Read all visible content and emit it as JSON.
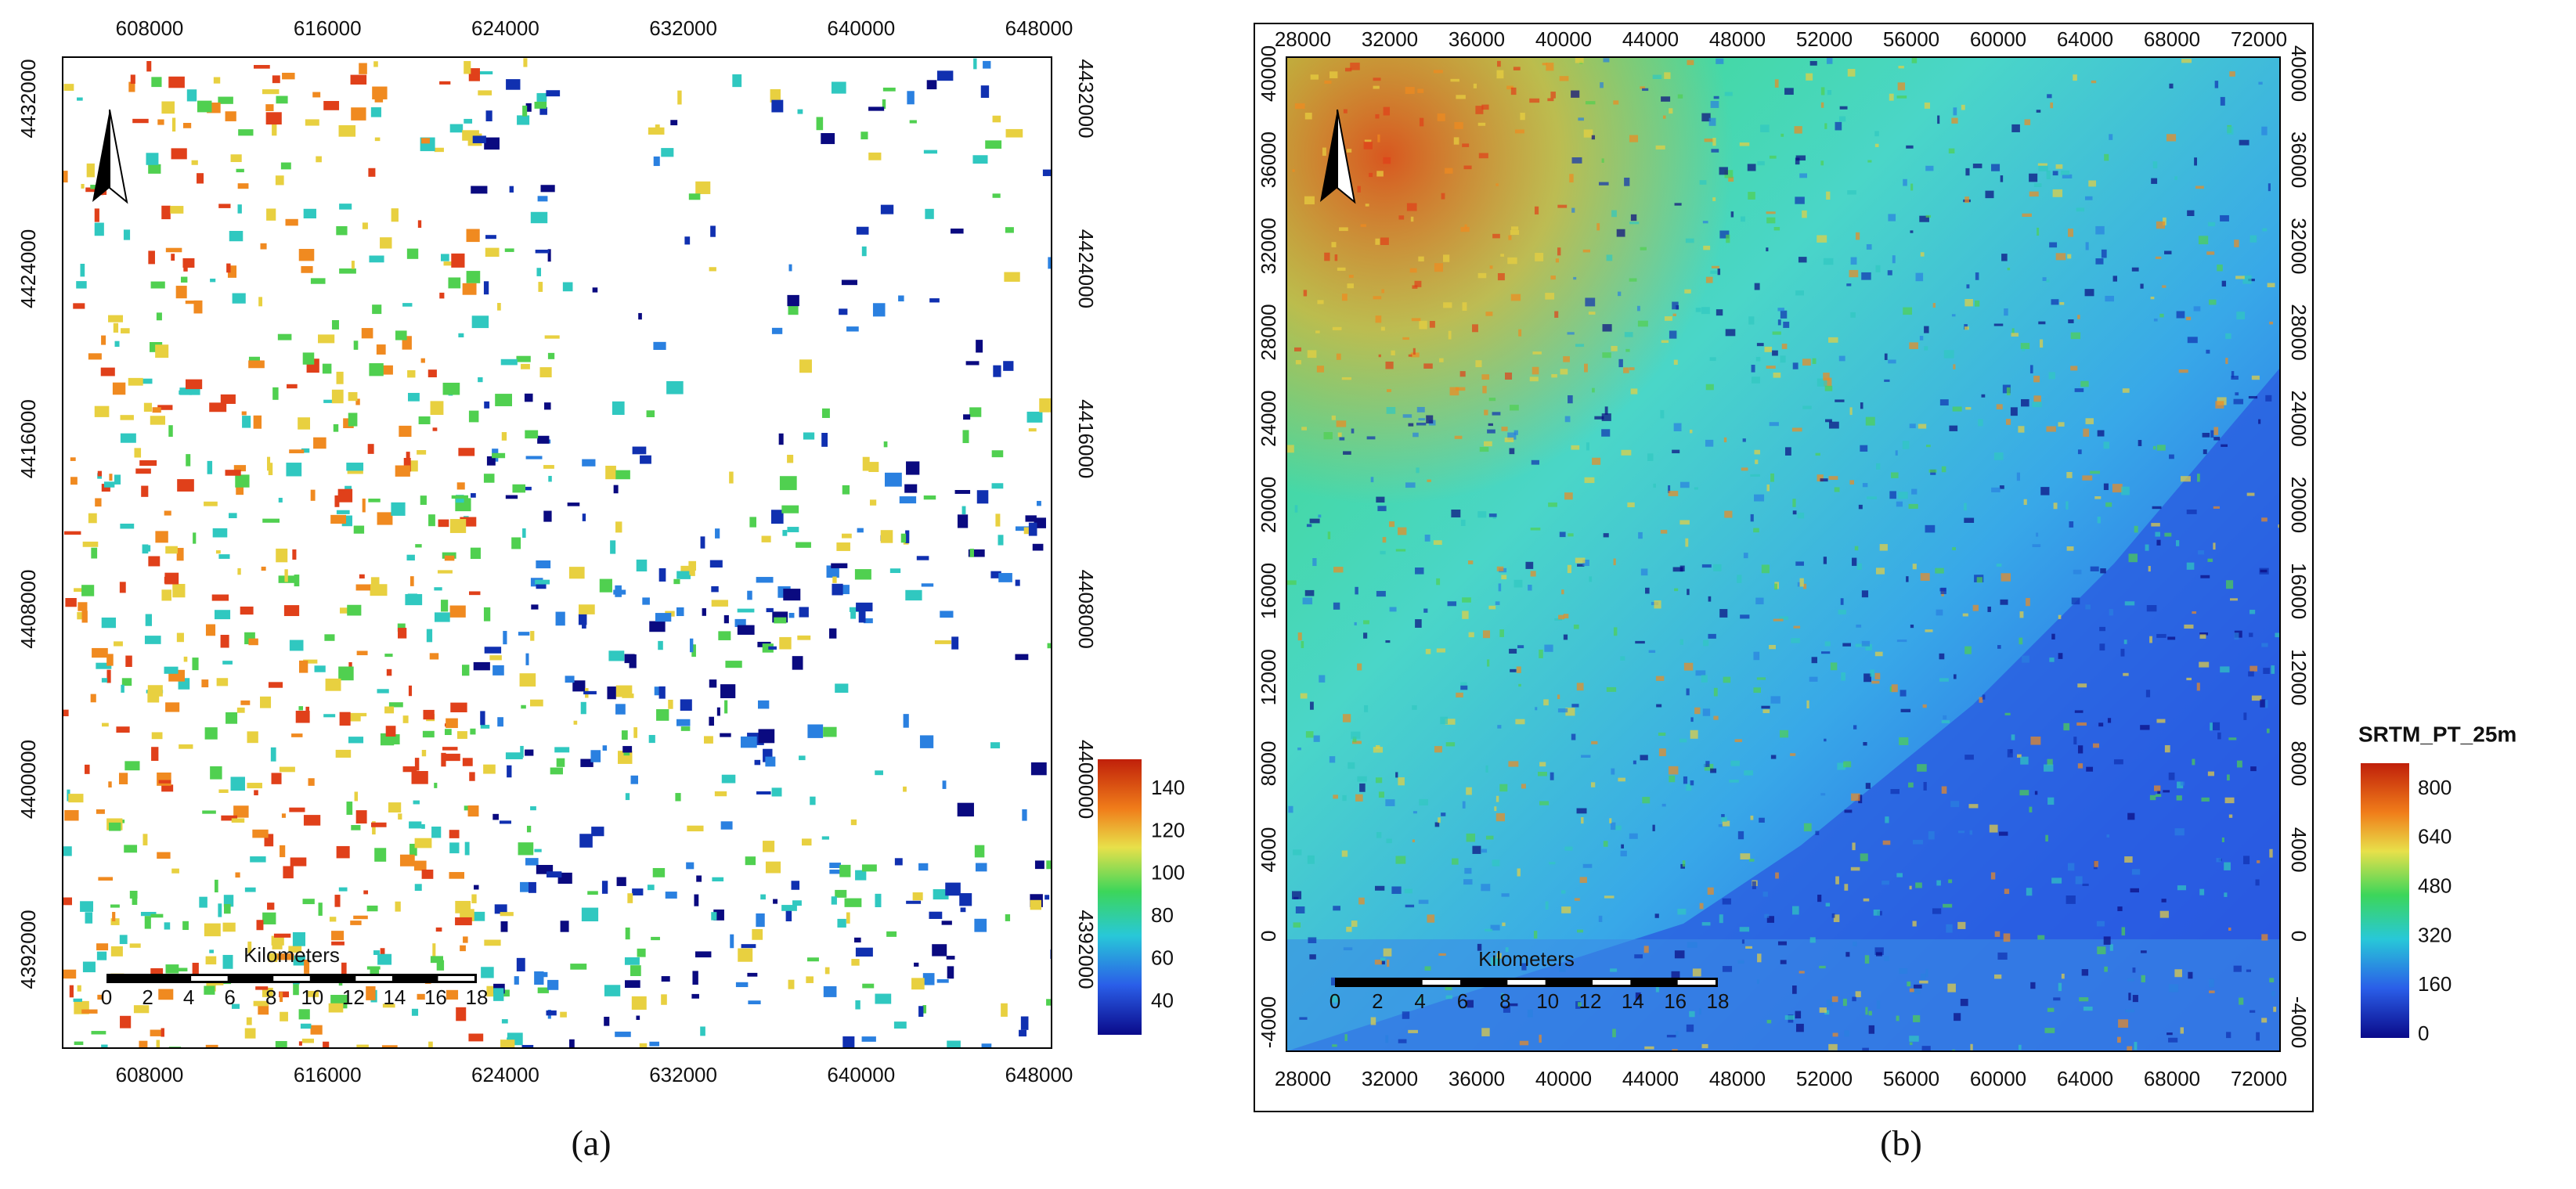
{
  "panels": [
    {
      "caption": "(a)",
      "x_ticks": [
        "608000",
        "616000",
        "624000",
        "632000",
        "640000",
        "648000"
      ],
      "y_ticks": [
        "4392000",
        "4400000",
        "4408000",
        "4416000",
        "4424000",
        "4432000"
      ],
      "scale_bar": {
        "title": "Kilometers",
        "labels": [
          "0",
          "2",
          "4",
          "6",
          "8",
          "10",
          "12",
          "14",
          "16",
          "18"
        ]
      },
      "colorbar": {
        "ticks": [
          "40",
          "60",
          "80",
          "100",
          "120",
          "140"
        ]
      }
    },
    {
      "caption": "(b)",
      "x_ticks": [
        "28000",
        "32000",
        "36000",
        "40000",
        "44000",
        "48000",
        "52000",
        "56000",
        "60000",
        "64000",
        "68000",
        "72000"
      ],
      "y_ticks": [
        "-4000",
        "0",
        "4000",
        "8000",
        "12000",
        "16000",
        "20000",
        "24000",
        "28000",
        "32000",
        "36000",
        "40000"
      ],
      "scale_bar": {
        "title": "Kilometers",
        "labels": [
          "0",
          "2",
          "4",
          "6",
          "8",
          "10",
          "12",
          "14",
          "16",
          "18"
        ]
      },
      "colorbar": {
        "title": "SRTM_PT_25m",
        "ticks": [
          "0",
          "160",
          "320",
          "480",
          "640",
          "800"
        ]
      }
    }
  ]
}
